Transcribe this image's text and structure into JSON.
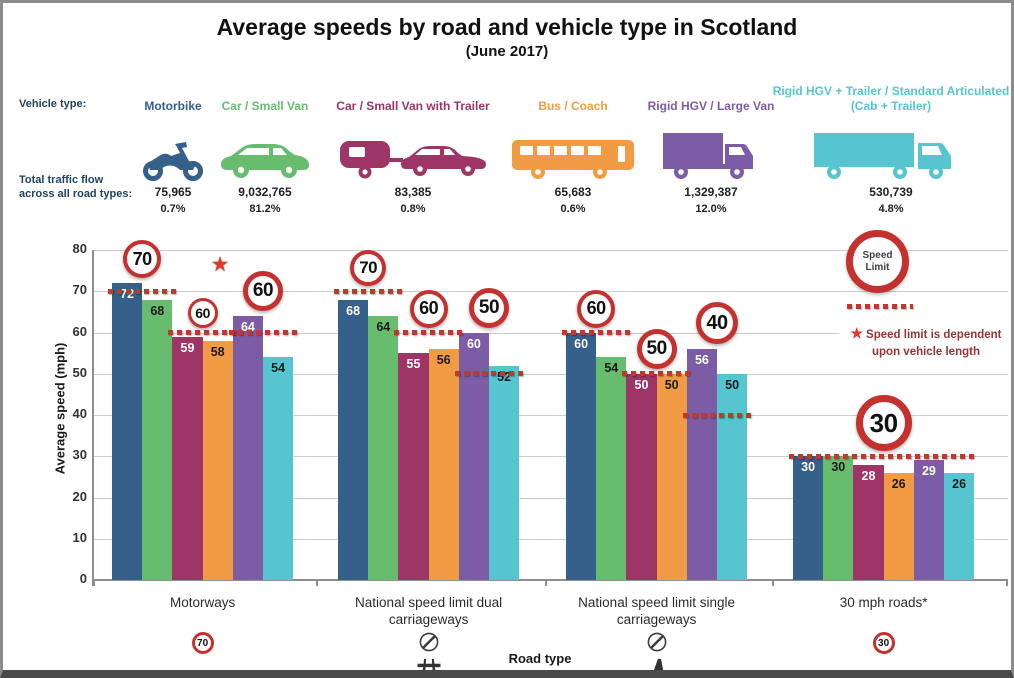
{
  "title": "Average speeds by road and vehicle type in Scotland",
  "subtitle": "(June 2017)",
  "vehicle_legend": {
    "vehicle_type_label": "Vehicle type:",
    "traffic_flow_label_line1": "Total traffic flow",
    "traffic_flow_label_line2": "across all road types:",
    "vehicles": [
      {
        "name": "Motorbike",
        "color": "#35608A",
        "flow": "75,965",
        "pct": "0.7%",
        "icon": "motorbike-icon"
      },
      {
        "name": "Car / Small Van",
        "color": "#67BC6E",
        "flow": "9,032,765",
        "pct": "81.2%",
        "icon": "car-icon"
      },
      {
        "name": "Car / Small Van with Trailer",
        "color": "#9E3567",
        "flow": "83,385",
        "pct": "0.8%",
        "icon": "car-with-trailer-icon"
      },
      {
        "name": "Bus / Coach",
        "color": "#F19C44",
        "flow": "65,683",
        "pct": "0.6%",
        "icon": "bus-icon"
      },
      {
        "name": "Rigid HGV / Large Van",
        "color": "#7C5CA4",
        "flow": "1,329,387",
        "pct": "12.0%",
        "icon": "rigid-hgv-icon"
      },
      {
        "name": "Rigid HGV + Trailer / Standard Articulated (Cab + Trailer)",
        "color": "#56C5D0",
        "flow": "530,739",
        "pct": "4.8%",
        "icon": "articulated-hgv-icon"
      }
    ]
  },
  "chart_data": {
    "type": "bar",
    "title": "Average speeds by road and vehicle type in Scotland (June 2017)",
    "ylabel": "Average speed (mph)",
    "xlabel": "Road type",
    "ylim": [
      0,
      80
    ],
    "yticks": [
      0,
      10,
      20,
      30,
      40,
      50,
      60,
      70,
      80
    ],
    "grid": true,
    "legend_position": "top",
    "categories": [
      "Motorways",
      "National speed limit dual carriageways",
      "National speed limit single carriageways",
      "30 mph roads*"
    ],
    "series": [
      {
        "name": "Motorbike",
        "color": "#35608A",
        "label_color": "#FFFFFF",
        "values": [
          72,
          68,
          60,
          30
        ]
      },
      {
        "name": "Car / Small Van",
        "color": "#67BC6E",
        "label_color": "#1A1A1A",
        "values": [
          68,
          64,
          54,
          30
        ]
      },
      {
        "name": "Car / Small Van with Trailer",
        "color": "#9E3567",
        "label_color": "#FFFFFF",
        "values": [
          59,
          55,
          50,
          28
        ]
      },
      {
        "name": "Bus / Coach",
        "color": "#F19C44",
        "label_color": "#1A1A1A",
        "values": [
          58,
          56,
          50,
          26
        ]
      },
      {
        "name": "Rigid HGV / Large Van",
        "color": "#7C5CA4",
        "label_color": "#FFFFFF",
        "values": [
          64,
          60,
          56,
          29
        ]
      },
      {
        "name": "Rigid HGV + Trailer / Standard Articulated (Cab + Trailer)",
        "color": "#56C5D0",
        "label_color": "#1A1A1A",
        "values": [
          54,
          52,
          50,
          26
        ]
      }
    ],
    "speed_limit_annotations": [
      {
        "category": "Motorways",
        "pairs": [
          {
            "vehicles": [
              0,
              1
            ],
            "limit": 70,
            "sign": "70"
          },
          {
            "vehicles": [
              2,
              3
            ],
            "limit": 60,
            "sign": "60",
            "star": true
          },
          {
            "vehicles": [
              4,
              5
            ],
            "limit": 60,
            "sign": "60"
          }
        ]
      },
      {
        "category": "National speed limit dual carriageways",
        "pairs": [
          {
            "vehicles": [
              0,
              1
            ],
            "limit": 70,
            "sign": "70"
          },
          {
            "vehicles": [
              2,
              3
            ],
            "limit": 60,
            "sign": "60"
          },
          {
            "vehicles": [
              4,
              5
            ],
            "limit": 50,
            "sign": "50"
          }
        ]
      },
      {
        "category": "National speed limit single carriageways",
        "pairs": [
          {
            "vehicles": [
              0,
              1
            ],
            "limit": 60,
            "sign": "60"
          },
          {
            "vehicles": [
              2,
              3
            ],
            "limit": 50,
            "sign": "50"
          },
          {
            "vehicles": [
              4,
              5
            ],
            "limit": 40,
            "sign": "40"
          }
        ]
      },
      {
        "category": "30 mph roads*",
        "pairs": [
          {
            "vehicles": [
              0,
              1,
              2,
              3,
              4,
              5
            ],
            "limit": 30,
            "sign": "30"
          }
        ]
      }
    ],
    "category_axis_icons": [
      [
        {
          "type": "roundel",
          "text": "70"
        }
      ],
      [
        {
          "type": "national-speed-limit"
        },
        {
          "type": "motorway"
        }
      ],
      [
        {
          "type": "national-speed-limit"
        },
        {
          "type": "single-carriageway"
        }
      ],
      [
        {
          "type": "roundel",
          "text": "30"
        }
      ]
    ]
  },
  "chart_legend": {
    "speed_limit_sign_label": "Speed Limit",
    "star_note": "Speed limit is dependent upon vehicle length",
    "star_note_icon": "red-star-icon"
  },
  "colors": {
    "sign_red": "#C4312E",
    "dotted_line": "#C0392B",
    "star": "#E3362C",
    "note_text": "#943634",
    "header_label": "#24425F",
    "grid": "#CDCDCD",
    "axis": "#8E8E8E"
  }
}
